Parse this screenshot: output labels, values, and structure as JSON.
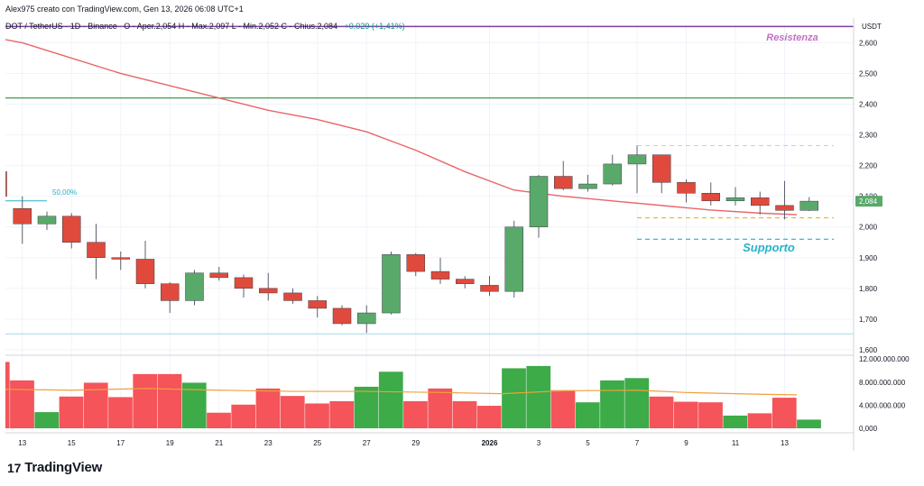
{
  "header": {
    "credit": "Alex975 creato con TradingView.com, Gen 13, 2026 06:08 UTC+1",
    "legend_prefix": "DOT / TetherUS · 1D · Binance",
    "legend_ohlc": "O - Aper.2,054  H - Max.2,097  L - Min.2,052  C - Chius.2,084",
    "legend_change": "+0,029 (+1,41%)"
  },
  "brand": {
    "name": "TradingView",
    "logo": "tradingview-logo-icon"
  },
  "colors": {
    "up": "#59a96a",
    "down": "#e04a3c",
    "vol_up": "#3cab48",
    "vol_down": "#f4545a",
    "sma": "#e8666a",
    "vol_ma": "#f0a03c",
    "resistance": "#7b3fa6",
    "support_line": "#2e8b3a",
    "supporto": "#26b3c7",
    "resistenza": "#c36fc4",
    "price_tag": "#59a96a"
  },
  "chart_data": {
    "type": "candlestick",
    "symbol": "DOT / TetherUS",
    "interval": "1D",
    "exchange": "Binance",
    "price_axis": {
      "label": "USDT",
      "ticks": [
        2.6,
        2.5,
        2.4,
        2.3,
        2.2,
        2.1,
        2.0,
        1.9,
        1.8,
        1.7,
        1.6
      ],
      "tick_labels": [
        "2,600",
        "2,500",
        "2,400",
        "2,300",
        "2,200",
        "2,100",
        "2,000",
        "1,900",
        "1,800",
        "1,700",
        "1,600"
      ],
      "range": [
        1.585,
        2.66
      ]
    },
    "volume_axis": {
      "ticks": [
        12000000000,
        8000000000,
        4000000000,
        0
      ],
      "tick_labels": [
        "12.000.000.000",
        "8.000.000.000",
        "4.000.000.000",
        "0,000"
      ],
      "range": [
        0,
        12500000000
      ]
    },
    "x_ticks": [
      {
        "label": "13",
        "index": 1
      },
      {
        "label": "15",
        "index": 3
      },
      {
        "label": "17",
        "index": 5
      },
      {
        "label": "19",
        "index": 7
      },
      {
        "label": "21",
        "index": 9
      },
      {
        "label": "23",
        "index": 11
      },
      {
        "label": "25",
        "index": 13
      },
      {
        "label": "27",
        "index": 15
      },
      {
        "label": "29",
        "index": 17
      },
      {
        "label": "2026",
        "index": 20,
        "bold": true
      },
      {
        "label": "3",
        "index": 22
      },
      {
        "label": "5",
        "index": 24
      },
      {
        "label": "7",
        "index": 26
      },
      {
        "label": "9",
        "index": 28
      },
      {
        "label": "11",
        "index": 30
      },
      {
        "label": "13",
        "index": 32
      }
    ],
    "candles": [
      {
        "o": 2.18,
        "h": 2.19,
        "l": 2.09,
        "c": 2.1
      },
      {
        "o": 2.06,
        "h": 2.1,
        "l": 1.945,
        "c": 2.01
      },
      {
        "o": 2.01,
        "h": 2.05,
        "l": 1.99,
        "c": 2.035
      },
      {
        "o": 2.035,
        "h": 2.045,
        "l": 1.93,
        "c": 1.95
      },
      {
        "o": 1.95,
        "h": 2.01,
        "l": 1.83,
        "c": 1.9
      },
      {
        "o": 1.9,
        "h": 1.92,
        "l": 1.86,
        "c": 1.895
      },
      {
        "o": 1.895,
        "h": 1.955,
        "l": 1.8,
        "c": 1.815
      },
      {
        "o": 1.815,
        "h": 1.82,
        "l": 1.72,
        "c": 1.76
      },
      {
        "o": 1.76,
        "h": 1.86,
        "l": 1.745,
        "c": 1.85
      },
      {
        "o": 1.85,
        "h": 1.87,
        "l": 1.825,
        "c": 1.835
      },
      {
        "o": 1.835,
        "h": 1.845,
        "l": 1.77,
        "c": 1.8
      },
      {
        "o": 1.8,
        "h": 1.85,
        "l": 1.76,
        "c": 1.785
      },
      {
        "o": 1.785,
        "h": 1.8,
        "l": 1.75,
        "c": 1.76
      },
      {
        "o": 1.76,
        "h": 1.775,
        "l": 1.705,
        "c": 1.735
      },
      {
        "o": 1.735,
        "h": 1.745,
        "l": 1.68,
        "c": 1.685
      },
      {
        "o": 1.685,
        "h": 1.745,
        "l": 1.655,
        "c": 1.72
      },
      {
        "o": 1.72,
        "h": 1.92,
        "l": 1.715,
        "c": 1.91
      },
      {
        "o": 1.91,
        "h": 1.915,
        "l": 1.84,
        "c": 1.855
      },
      {
        "o": 1.855,
        "h": 1.9,
        "l": 1.815,
        "c": 1.83
      },
      {
        "o": 1.83,
        "h": 1.84,
        "l": 1.8,
        "c": 1.815
      },
      {
        "o": 1.81,
        "h": 1.84,
        "l": 1.775,
        "c": 1.79
      },
      {
        "o": 1.79,
        "h": 2.02,
        "l": 1.77,
        "c": 2.0
      },
      {
        "o": 2.0,
        "h": 2.17,
        "l": 1.965,
        "c": 2.165
      },
      {
        "o": 2.165,
        "h": 2.215,
        "l": 2.12,
        "c": 2.125
      },
      {
        "o": 2.125,
        "h": 2.17,
        "l": 2.115,
        "c": 2.14
      },
      {
        "o": 2.14,
        "h": 2.235,
        "l": 2.135,
        "c": 2.205
      },
      {
        "o": 2.205,
        "h": 2.265,
        "l": 2.11,
        "c": 2.235
      },
      {
        "o": 2.235,
        "h": 2.235,
        "l": 2.11,
        "c": 2.145
      },
      {
        "o": 2.145,
        "h": 2.155,
        "l": 2.08,
        "c": 2.11
      },
      {
        "o": 2.11,
        "h": 2.145,
        "l": 2.07,
        "c": 2.085
      },
      {
        "o": 2.085,
        "h": 2.13,
        "l": 2.07,
        "c": 2.095
      },
      {
        "o": 2.095,
        "h": 2.115,
        "l": 2.04,
        "c": 2.07
      },
      {
        "o": 2.07,
        "h": 2.15,
        "l": 2.025,
        "c": 2.054
      },
      {
        "o": 2.054,
        "h": 2.097,
        "l": 2.052,
        "c": 2.084
      }
    ],
    "volumes": [
      11500000000,
      8300000000,
      2800000000,
      5500000000,
      7900000000,
      5400000000,
      9400000000,
      9400000000,
      7900000000,
      2700000000,
      4100000000,
      6900000000,
      5600000000,
      4300000000,
      4700000000,
      7200000000,
      9800000000,
      4700000000,
      6900000000,
      4700000000,
      3900000000,
      10400000000,
      10800000000,
      6600000000,
      4500000000,
      8300000000,
      8700000000,
      5500000000,
      4600000000,
      4500000000,
      2200000000,
      2600000000,
      5300000000,
      1500000000
    ],
    "sma": [
      [
        -1,
        2.63
      ],
      [
        1,
        2.6
      ],
      [
        3,
        2.55
      ],
      [
        5,
        2.5
      ],
      [
        7,
        2.46
      ],
      [
        9,
        2.42
      ],
      [
        11,
        2.38
      ],
      [
        13,
        2.35
      ],
      [
        15,
        2.31
      ],
      [
        17,
        2.25
      ],
      [
        19,
        2.18
      ],
      [
        21,
        2.12
      ],
      [
        23,
        2.1
      ],
      [
        25,
        2.085
      ],
      [
        27,
        2.07
      ],
      [
        29,
        2.055
      ],
      [
        31,
        2.045
      ],
      [
        32.5,
        2.04
      ]
    ],
    "volume_ma": [
      [
        -0.5,
        6800000000
      ],
      [
        3,
        6600000000
      ],
      [
        6,
        6900000000
      ],
      [
        9,
        6600000000
      ],
      [
        12,
        6400000000
      ],
      [
        15,
        6400000000
      ],
      [
        18,
        6200000000
      ],
      [
        20.5,
        6000000000
      ],
      [
        23,
        6500000000
      ],
      [
        26,
        6600000000
      ],
      [
        28,
        6200000000
      ],
      [
        31,
        5900000000
      ],
      [
        32.5,
        5800000000
      ]
    ],
    "levels": {
      "resistance_top": 2.653,
      "resistance_line": 2.42,
      "upper_dotted": 2.265,
      "fib_level": 2.085,
      "orange_dashed": 2.03,
      "support_dashed": 1.96,
      "support_dotted": 1.652
    },
    "annotations": {
      "resistenza": "Resistenza",
      "supporto": "Supporto",
      "fib_label": "50,00%"
    },
    "last_price": {
      "value": 2.084,
      "label": "2,084"
    }
  }
}
